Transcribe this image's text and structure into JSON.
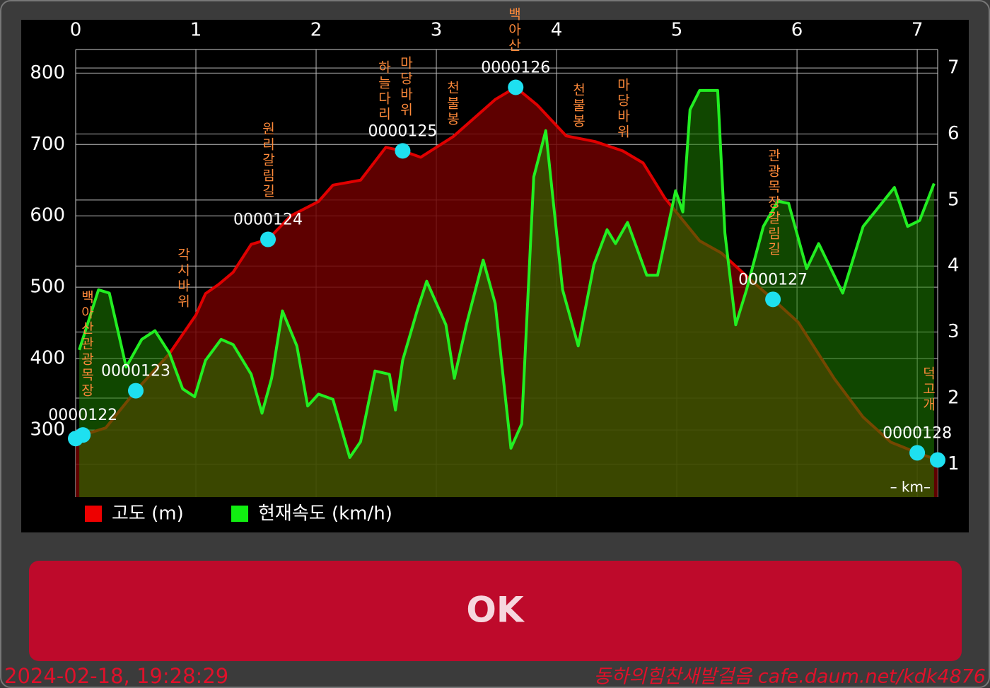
{
  "chart_data": {
    "type": "area",
    "series": [
      {
        "name": "고도 (m)",
        "color": "#e00000",
        "x": [
          0,
          0.06,
          0.25,
          0.5,
          0.78,
          1.0,
          1.08,
          1.19,
          1.31,
          1.46,
          1.6,
          1.79,
          2.02,
          2.14,
          2.37,
          2.58,
          2.72,
          2.87,
          3.14,
          3.49,
          3.66,
          3.84,
          4.08,
          4.32,
          4.55,
          4.72,
          4.9,
          5.19,
          5.37,
          5.61,
          5.8,
          6.01,
          6.31,
          6.55,
          6.78,
          7.0,
          7.17
        ],
        "values": [
          288,
          293,
          303,
          355,
          407,
          461,
          491,
          504,
          521,
          560,
          567,
          600,
          620,
          643,
          650,
          696,
          691,
          682,
          711,
          763,
          780,
          755,
          712,
          704,
          691,
          674,
          625,
          565,
          548,
          511,
          483,
          451,
          372,
          318,
          283,
          268,
          258
        ]
      },
      {
        "name": "현재속도 (km/h)",
        "color": "#22ee22",
        "axis": "y2",
        "x": [
          0.03,
          0.19,
          0.28,
          0.42,
          0.55,
          0.66,
          0.78,
          0.89,
          0.99,
          1.08,
          1.21,
          1.31,
          1.46,
          1.55,
          1.63,
          1.72,
          1.84,
          1.93,
          2.02,
          2.14,
          2.28,
          2.37,
          2.49,
          2.61,
          2.66,
          2.72,
          2.84,
          2.92,
          3.08,
          3.15,
          3.25,
          3.39,
          3.49,
          3.62,
          3.71,
          3.81,
          3.91,
          4.05,
          4.18,
          4.31,
          4.42,
          4.49,
          4.59,
          4.75,
          4.84,
          4.99,
          5.05,
          5.11,
          5.19,
          5.34,
          5.4,
          5.49,
          5.58,
          5.72,
          5.84,
          5.93,
          6.08,
          6.18,
          6.38,
          6.55,
          6.81,
          6.92,
          7.02,
          7.14
        ],
        "values": [
          2.73,
          3.64,
          3.59,
          2.47,
          2.89,
          3.02,
          2.68,
          2.14,
          2.02,
          2.57,
          2.89,
          2.81,
          2.36,
          1.77,
          2.3,
          3.32,
          2.79,
          1.88,
          2.06,
          1.98,
          1.1,
          1.34,
          2.41,
          2.36,
          1.82,
          2.57,
          3.32,
          3.77,
          3.11,
          2.3,
          3.11,
          4.09,
          3.43,
          1.24,
          1.61,
          5.35,
          6.05,
          3.64,
          2.79,
          4.02,
          4.55,
          4.34,
          4.66,
          3.86,
          3.86,
          5.14,
          4.82,
          6.37,
          6.66,
          6.66,
          4.5,
          3.11,
          3.64,
          4.6,
          4.98,
          4.95,
          3.96,
          4.34,
          3.59,
          4.6,
          5.19,
          4.6,
          4.69,
          5.25
        ]
      }
    ],
    "xlim": [
      0,
      7.17
    ],
    "xticks": [
      0,
      1,
      2,
      3,
      4,
      5,
      6,
      7
    ],
    "ylim": [
      206,
      833
    ],
    "yticks": [
      300,
      400,
      500,
      600,
      700,
      800
    ],
    "y2lim": [
      0.5,
      7.28
    ],
    "y2ticks": [
      1,
      2,
      3,
      4,
      5,
      6,
      7
    ],
    "grid": true,
    "x_unit": "– km–",
    "waypoints": [
      {
        "name": null,
        "x": 0,
        "y": 288
      },
      {
        "name": "0000122",
        "x": 0.06,
        "y": 293
      },
      {
        "name": "0000123",
        "x": 0.5,
        "y": 355
      },
      {
        "name": "0000124",
        "x": 1.6,
        "y": 567
      },
      {
        "name": "0000125",
        "x": 2.72,
        "y": 691
      },
      {
        "name": "0000126",
        "x": 3.66,
        "y": 780
      },
      {
        "name": "0000127",
        "x": 5.8,
        "y": 483
      },
      {
        "name": "0000128",
        "x": 7.0,
        "y": 268
      },
      {
        "name": null,
        "x": 7.17,
        "y": 258
      }
    ],
    "place_names": [
      "백아산관광목장",
      "각시바위",
      "원리갈림길",
      "하늘다리",
      "마당바위",
      "천불봉",
      "백아산",
      "천불봉",
      "마당바위",
      "관광목장갈림길",
      "덕고개"
    ]
  },
  "ok_button": {
    "label": "OK"
  },
  "footer": {
    "timestamp": "2024-02-18, 19:28:29",
    "watermark": "동하의힘찬새발걸음 cafe.daum.net/kdk4876"
  }
}
